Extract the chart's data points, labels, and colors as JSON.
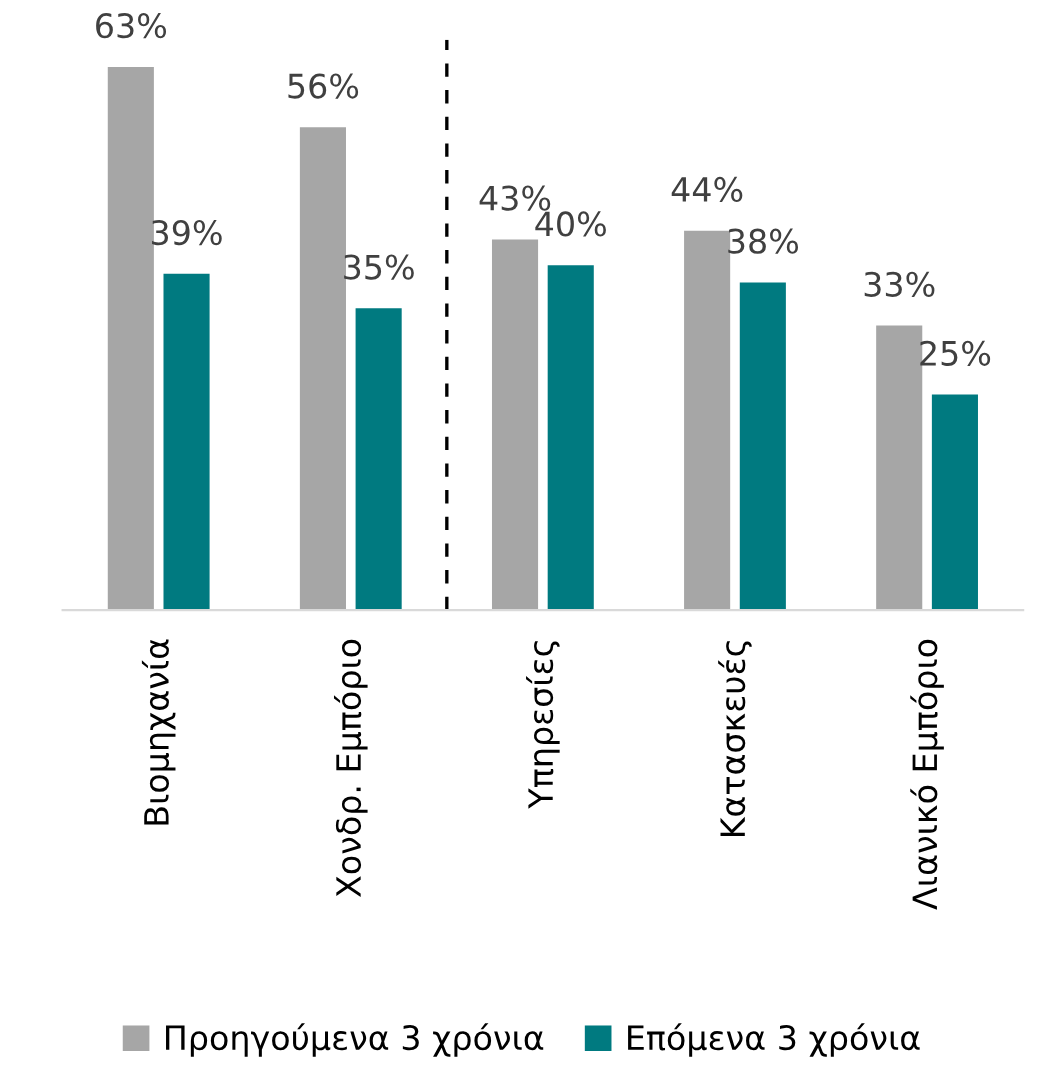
{
  "chart_data": {
    "type": "bar",
    "categories": [
      "Βιομηχανία",
      "Χονδρ. Εμπόριο",
      "Υπηρεσίες",
      "Κατασκευές",
      "Λιανικό Εμπόριο"
    ],
    "series": [
      {
        "name": "Προηγούμενα 3 χρόνια",
        "color": "#a6a6a6",
        "values": [
          63,
          56,
          43,
          44,
          33
        ],
        "value_labels": [
          "63%",
          "56%",
          "43%",
          "44%",
          "33%"
        ]
      },
      {
        "name": "Επόμενα 3 χρόνια",
        "color": "#007a80",
        "values": [
          39,
          35,
          40,
          38,
          25
        ],
        "value_labels": [
          "39%",
          "35%",
          "40%",
          "38%",
          "25%"
        ]
      }
    ],
    "legend": "bottom",
    "grid": false
  }
}
